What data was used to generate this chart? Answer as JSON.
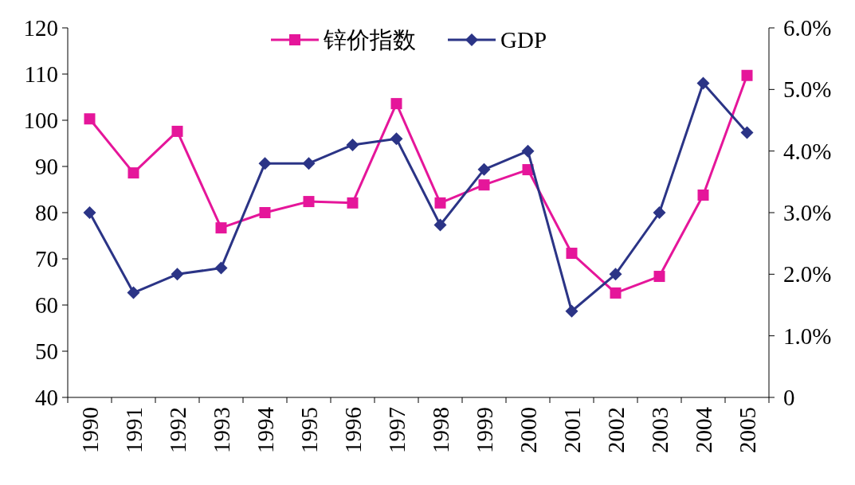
{
  "chart_data": {
    "type": "line",
    "categories": [
      "1990",
      "1991",
      "1992",
      "1993",
      "1994",
      "1995",
      "1996",
      "1997",
      "1998",
      "1999",
      "2000",
      "2001",
      "2002",
      "2003",
      "2004",
      "2005"
    ],
    "series": [
      {
        "name": "锌价指数",
        "color": "#e5169a",
        "marker": "square",
        "values": [
          100.3,
          88.6,
          97.6,
          76.7,
          80,
          82.4,
          82.1,
          103.6,
          82.1,
          86.0,
          89.3,
          71.2,
          62.6,
          66.2,
          83.8,
          109.7
        ]
      },
      {
        "name": "GDP",
        "color": "#2b3486",
        "marker": "diamond",
        "axis": "y2",
        "values": [
          3.0,
          1.7,
          2.0,
          2.1,
          3.8,
          3.8,
          4.1,
          4.2,
          2.8,
          3.7,
          4.0,
          1.4,
          2.0,
          3.0,
          5.1,
          4.3
        ]
      }
    ],
    "ylim": [
      40,
      120
    ],
    "yticks": [
      40,
      50,
      60,
      70,
      80,
      90,
      100,
      110,
      120
    ],
    "y2lim": [
      0,
      6
    ],
    "y2ticks": [
      0,
      {
        "value": 1,
        "label": "1.0%"
      },
      {
        "value": 2,
        "label": "2.0%"
      },
      {
        "value": 3,
        "label": "3.0%"
      },
      {
        "value": 4,
        "label": "4.0%"
      },
      {
        "value": 5,
        "label": "5.0%"
      },
      {
        "value": 6,
        "label": "6.0%"
      }
    ],
    "legend": "top",
    "grid": false,
    "line_style": "solid"
  }
}
